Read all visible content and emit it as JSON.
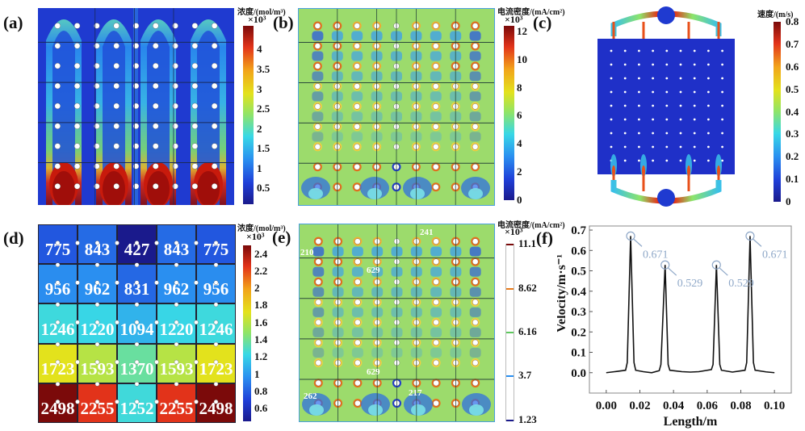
{
  "panels": {
    "a": {
      "label": "(a)",
      "colorbar": {
        "title": "浓度/(mol/m³)",
        "exponent": "×10³",
        "ticks": [
          "4",
          "3.5",
          "3",
          "2.5",
          "2",
          "1.5",
          "1",
          "0.5"
        ],
        "tick_values": [
          4,
          3.5,
          3,
          2.5,
          2,
          1.5,
          1,
          0.5
        ],
        "range": [
          0.1,
          4.6
        ]
      }
    },
    "b": {
      "label": "(b)",
      "colorbar": {
        "title": "电流密度/(mA/cm²)",
        "exponent": "×10³",
        "ticks": [
          "12",
          "10",
          "8",
          "6",
          "4",
          "2",
          "0"
        ],
        "tick_values": [
          12,
          10,
          8,
          6,
          4,
          2,
          0
        ],
        "range": [
          0,
          12.4
        ]
      }
    },
    "c": {
      "label": "(c)",
      "colorbar": {
        "title": "速度/(m/s)",
        "ticks": [
          "0.8",
          "0.7",
          "0.6",
          "0.5",
          "0.4",
          "0.3",
          "0.2",
          "0.1",
          "0"
        ],
        "tick_values": [
          0.8,
          0.7,
          0.6,
          0.5,
          0.4,
          0.3,
          0.2,
          0.1,
          0
        ],
        "range": [
          0,
          0.8
        ]
      }
    },
    "d": {
      "label": "(d)",
      "colorbar": {
        "title": "浓度/(mol/m³)",
        "exponent": "×10³",
        "ticks": [
          "2.4",
          "2.2",
          "2",
          "1.8",
          "1.6",
          "1.4",
          "1.2",
          "1",
          "0.8",
          "0.6"
        ],
        "tick_values": [
          2.4,
          2.2,
          2,
          1.8,
          1.6,
          1.4,
          1.2,
          1,
          0.8,
          0.6
        ],
        "range": [
          0.45,
          2.5
        ]
      },
      "grid_values": [
        [
          775,
          843,
          427,
          843,
          775
        ],
        [
          956,
          962,
          831,
          962,
          956
        ],
        [
          1246,
          1220,
          1094,
          1220,
          1246
        ],
        [
          1723,
          1593,
          1370,
          1593,
          1723
        ],
        [
          2498,
          2255,
          1252,
          2255,
          2498
        ]
      ]
    },
    "e": {
      "label": "(e)",
      "colorbar": {
        "title": "电流密度/(mA/cm²)",
        "exponent": "×10³",
        "ticks": [
          "11.1",
          "8.62",
          "6.16",
          "3.7",
          "1.23"
        ],
        "tick_values": [
          11.1,
          8.62,
          6.16,
          3.7,
          1.23
        ],
        "range": [
          1.23,
          11.1
        ]
      },
      "annotations": [
        "241",
        "210",
        "629",
        "629",
        "262",
        "217"
      ]
    },
    "f": {
      "label": "(f)"
    }
  },
  "chart_data": {
    "type": "line",
    "title": "",
    "xlabel": "Length/m",
    "ylabel": "Velocity/m·s⁻¹",
    "xlim": [
      -0.01,
      0.11
    ],
    "ylim": [
      -0.1,
      0.72
    ],
    "xticks": [
      "0.00",
      "0.02",
      "0.04",
      "0.06",
      "0.08",
      "0.10"
    ],
    "xtick_values": [
      0,
      0.02,
      0.04,
      0.06,
      0.08,
      0.1
    ],
    "yticks": [
      "0.0",
      "0.1",
      "0.2",
      "0.3",
      "0.4",
      "0.5",
      "0.6",
      "0.7"
    ],
    "ytick_values": [
      0,
      0.1,
      0.2,
      0.3,
      0.4,
      0.5,
      0.6,
      0.7
    ],
    "series": [
      {
        "name": "Velocity",
        "x": [
          0,
          0.005,
          0.0115,
          0.0125,
          0.0145,
          0.0165,
          0.0175,
          0.022,
          0.027,
          0.0315,
          0.0325,
          0.035,
          0.0368,
          0.0378,
          0.045,
          0.05,
          0.055,
          0.0625,
          0.0635,
          0.0655,
          0.0675,
          0.0685,
          0.075,
          0.0825,
          0.0835,
          0.0855,
          0.0875,
          0.0885,
          0.095,
          0.1
        ],
        "y": [
          0,
          0.005,
          0.012,
          0.05,
          0.671,
          0.05,
          0.012,
          0.005,
          0.0,
          0.01,
          0.04,
          0.529,
          0.04,
          0.012,
          0.005,
          0.003,
          0.005,
          0.015,
          0.04,
          0.529,
          0.04,
          0.012,
          0.003,
          0.012,
          0.05,
          0.671,
          0.05,
          0.012,
          0.004,
          0.0
        ]
      }
    ],
    "annotations": [
      {
        "x": 0.0145,
        "y": 0.671,
        "text": "0.671"
      },
      {
        "x": 0.035,
        "y": 0.529,
        "text": "0.529"
      },
      {
        "x": 0.0655,
        "y": 0.529,
        "text": "0.529"
      },
      {
        "x": 0.0855,
        "y": 0.671,
        "text": "0.671"
      }
    ],
    "annotation_color": "#8fa8c8"
  }
}
